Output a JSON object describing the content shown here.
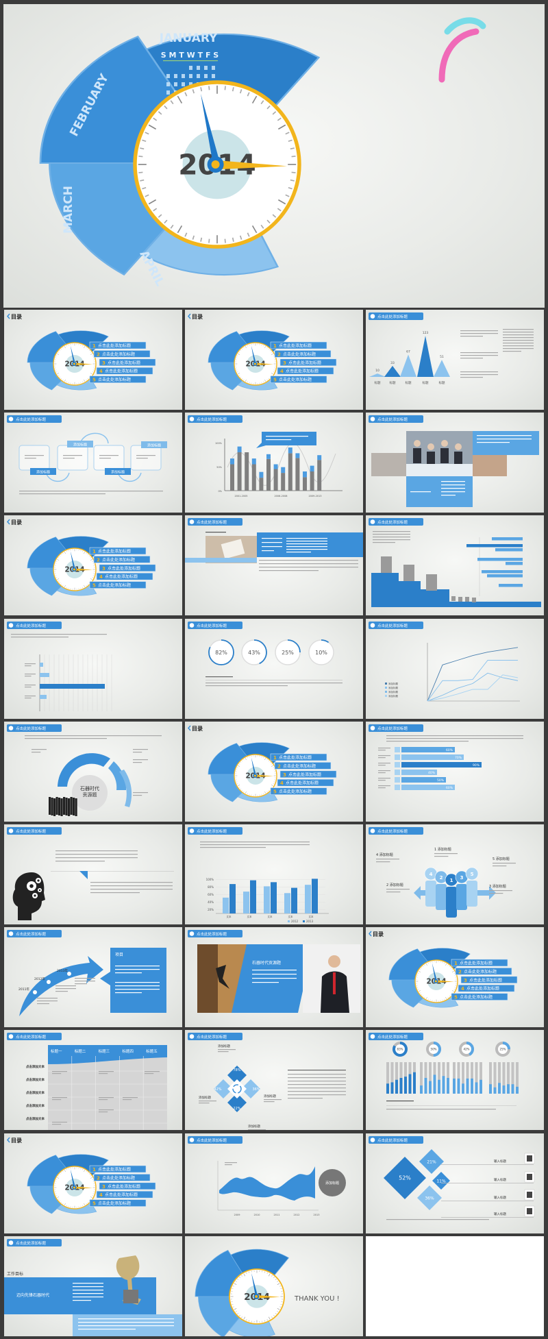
{
  "colors": {
    "blue": "#2f86d1",
    "dark_blue": "#2b7fc9",
    "light_blue": "#8cc3ee",
    "yellow": "#f2b51c",
    "gray": "#7a7a7a",
    "frame": "#3b3b3b"
  },
  "hero": {
    "months": [
      "JANUARY",
      "FEBRUARY",
      "MARCH",
      "APRIL"
    ],
    "weekdays": "S M T W T F S",
    "year": "2014"
  },
  "common": {
    "header_label": "点击此处添加标题",
    "toc_title": "目录",
    "toc_numbers": [
      "1",
      "2",
      "3",
      "4",
      "5"
    ],
    "toc_items": [
      "点击此处添加标题",
      "点击此处添加标题",
      "点击此处添加标题",
      "点击此处添加标题",
      "点击此处添加标题"
    ],
    "year": "2014"
  },
  "slides": [
    {
      "kind": "toc"
    },
    {
      "kind": "toc"
    },
    {
      "kind": "peaks",
      "values": [
        10,
        33,
        67,
        123,
        51
      ],
      "labels": [
        "标题",
        "标题",
        "标题",
        "标题",
        "标题"
      ]
    },
    {
      "kind": "process",
      "tags": [
        "添加标题",
        "添加标题",
        "添加标题",
        "添加标题"
      ]
    },
    {
      "kind": "stacked",
      "x_labels": [
        "2001-2005",
        "2006-2008",
        "2009-2013"
      ],
      "y_labels": [
        "0%",
        "50%",
        "100%"
      ],
      "base": [
        55,
        80,
        80,
        55,
        27,
        66,
        45,
        37,
        78,
        68,
        28,
        40,
        64
      ],
      "top": [
        12,
        12,
        0,
        12,
        12,
        10,
        10,
        12,
        12,
        10,
        12,
        12,
        10
      ]
    },
    {
      "kind": "photos"
    },
    {
      "kind": "toc"
    },
    {
      "kind": "photo_text"
    },
    {
      "kind": "steps"
    },
    {
      "kind": "hbar",
      "values": [
        5,
        14,
        95,
        10
      ]
    },
    {
      "kind": "rings",
      "labels": [
        "82%",
        "43%",
        "25%",
        "10%"
      ],
      "values": [
        82,
        43,
        25,
        10
      ]
    },
    {
      "kind": "lines",
      "legend": [
        "添加标题",
        "添加标题",
        "添加标题",
        "添加标题"
      ],
      "series": [
        [
          0,
          62,
          70,
          78,
          84,
          88,
          92
        ],
        [
          0,
          35,
          35,
          37,
          70,
          70,
          70
        ],
        [
          0,
          10,
          22,
          30,
          48,
          40,
          35
        ],
        [
          0,
          5,
          12,
          20,
          20,
          45,
          40
        ]
      ]
    },
    {
      "kind": "semicircle",
      "center": "石器时代",
      "center2": "贡源题"
    },
    {
      "kind": "toc"
    },
    {
      "kind": "icon_bars",
      "values": [
        60,
        70,
        90,
        40,
        50,
        60
      ],
      "labels": [
        "60%",
        "70%",
        "90%",
        "40%",
        "50%",
        "60%"
      ]
    },
    {
      "kind": "head"
    },
    {
      "kind": "grouped",
      "categories": [
        "文本",
        "文本",
        "文本",
        "文本",
        "文本"
      ],
      "y_labels": [
        "20%",
        "40%",
        "60%",
        "80%",
        "100%"
      ],
      "series": [
        {
          "name": "2012",
          "values": [
            52,
            68,
            82,
            64,
            86
          ]
        },
        {
          "name": "2013",
          "values": [
            88,
            98,
            93,
            78,
            102
          ]
        }
      ]
    },
    {
      "kind": "people",
      "numbers": [
        "4",
        "2",
        "1",
        "3",
        "5"
      ],
      "labels": [
        "1 添加标题",
        "2 添加标题",
        "3 添加标题",
        "4 添加标题",
        "5 添加标题"
      ]
    },
    {
      "kind": "arrow",
      "years": [
        "2011年",
        "2012年",
        "2013年"
      ],
      "box_title": "项目"
    },
    {
      "kind": "climber",
      "box_title": "石器时代贡源题"
    },
    {
      "kind": "toc"
    },
    {
      "kind": "table",
      "headers": [
        "标题一",
        "标题二",
        "标题三",
        "标题四",
        "标题五"
      ],
      "rows": [
        "点击添加文本",
        "点击添加文本",
        "点击添加文本",
        "点击添加文本",
        "点击添加文本"
      ]
    },
    {
      "kind": "diamond",
      "labels": [
        "78%",
        "36%",
        "22%",
        "42%"
      ],
      "titles": [
        "添加标题",
        "添加标题",
        "添加标题",
        "添加标题"
      ]
    },
    {
      "kind": "donuts",
      "labels": [
        "83%",
        "50%",
        "42%",
        "25%"
      ],
      "values": [
        83,
        50,
        42,
        25
      ]
    },
    {
      "kind": "toc"
    },
    {
      "kind": "area",
      "x_labels": [
        "2009",
        "2010",
        "2011",
        "2012",
        "2013"
      ],
      "badge": "添加标题"
    },
    {
      "kind": "diamonds",
      "labels": [
        "52%",
        "21%",
        "11%",
        "36%"
      ],
      "titles": [
        "输入标题",
        "输入标题",
        "输入标题",
        "输入标题"
      ]
    },
    {
      "kind": "trophy",
      "title": "工作目标",
      "banner": "迈向先锋石器时代"
    },
    {
      "kind": "thanks",
      "text": "THANK YOU !"
    },
    {
      "kind": "blank"
    }
  ]
}
